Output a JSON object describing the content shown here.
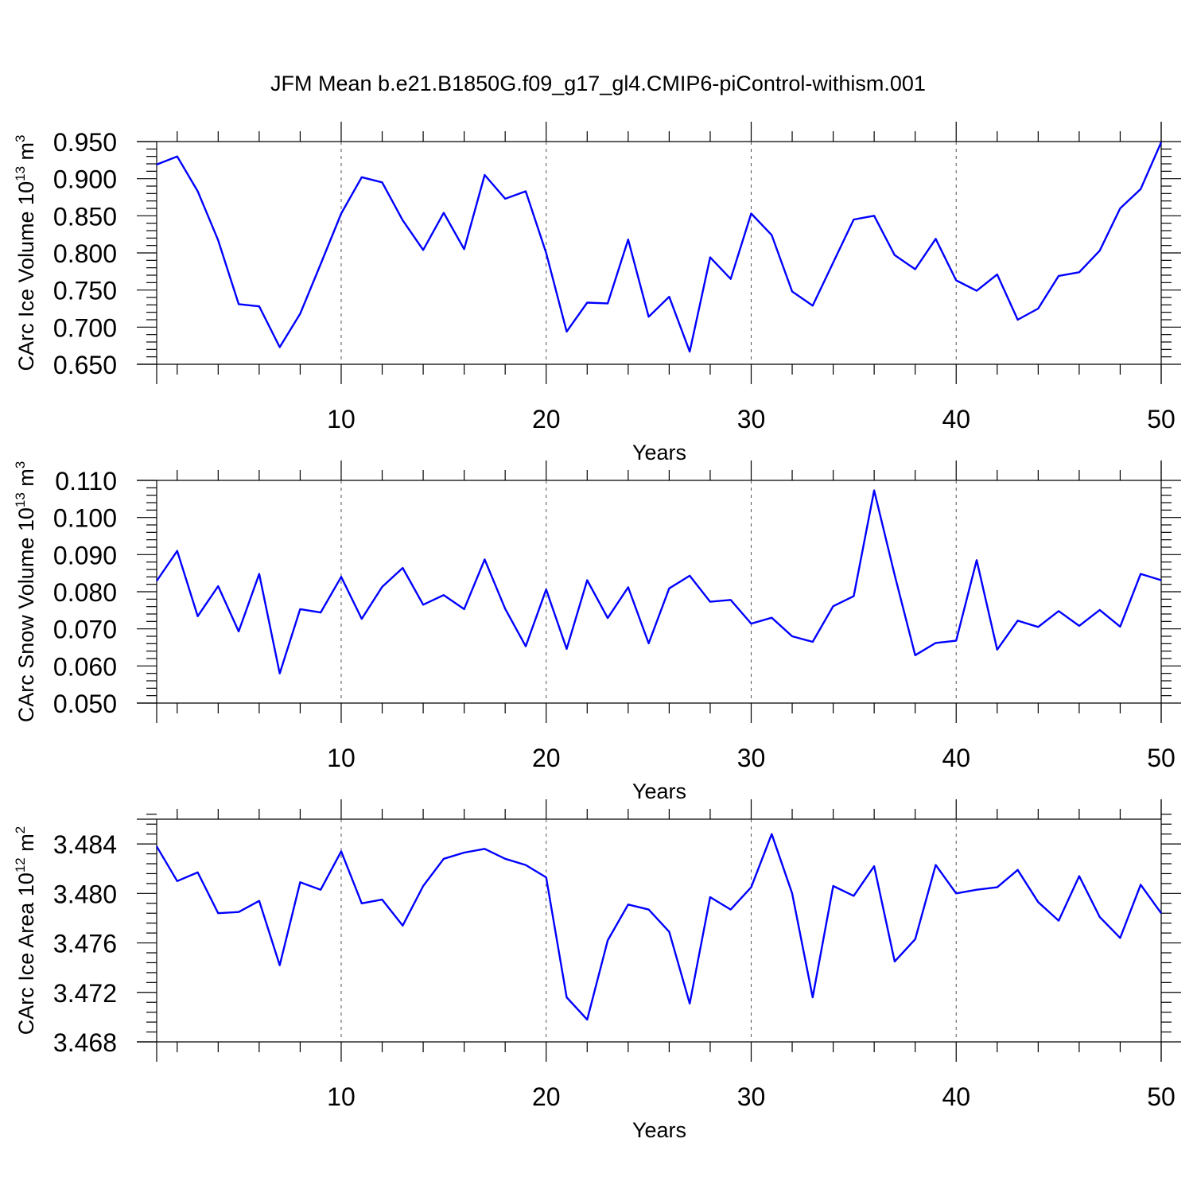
{
  "title": "JFM Mean b.e21.B1850G.f09_g17_gl4.CMIP6-piControl-withism.001",
  "line_color": "#0000ff",
  "chart_data": [
    {
      "type": "line",
      "ylabel_main": "CArc Ice Volume 10",
      "ylabel_exp": "13",
      "ylabel_unit": "m",
      "ylabel_unit_exp": "3",
      "xlabel": "Years",
      "xlim": [
        1,
        50
      ],
      "ylim": [
        0.65,
        0.95
      ],
      "x_ticks": [
        "10",
        "20",
        "30",
        "40",
        "50"
      ],
      "y_ticks": [
        "0.650",
        "0.700",
        "0.750",
        "0.800",
        "0.850",
        "0.900",
        "0.950"
      ],
      "x": [
        1,
        2,
        3,
        4,
        5,
        6,
        7,
        8,
        9,
        10,
        11,
        12,
        13,
        14,
        15,
        16,
        17,
        18,
        19,
        20,
        21,
        22,
        23,
        24,
        25,
        26,
        27,
        28,
        29,
        30,
        31,
        32,
        33,
        34,
        35,
        36,
        37,
        38,
        39,
        40,
        41,
        42,
        43,
        44,
        45,
        46,
        47,
        48,
        49,
        50
      ],
      "values": [
        0.919,
        0.93,
        0.883,
        0.817,
        0.731,
        0.728,
        0.673,
        0.718,
        0.785,
        0.853,
        0.902,
        0.895,
        0.844,
        0.804,
        0.854,
        0.805,
        0.905,
        0.873,
        0.883,
        0.8,
        0.694,
        0.733,
        0.732,
        0.818,
        0.714,
        0.741,
        0.667,
        0.794,
        0.765,
        0.853,
        0.824,
        0.748,
        0.729,
        0.787,
        0.845,
        0.85,
        0.797,
        0.778,
        0.819,
        0.763,
        0.749,
        0.771,
        0.71,
        0.725,
        0.769,
        0.774,
        0.803,
        0.86,
        0.886,
        0.949
      ]
    },
    {
      "type": "line",
      "ylabel_main": "CArc Snow Volume 10",
      "ylabel_exp": "13",
      "ylabel_unit": "m",
      "ylabel_unit_exp": "3",
      "xlabel": "Years",
      "xlim": [
        1,
        50
      ],
      "ylim": [
        0.05,
        0.11
      ],
      "x_ticks": [
        "10",
        "20",
        "30",
        "40",
        "50"
      ],
      "y_ticks": [
        "0.050",
        "0.060",
        "0.070",
        "0.080",
        "0.090",
        "0.100",
        "0.110"
      ],
      "x": [
        1,
        2,
        3,
        4,
        5,
        6,
        7,
        8,
        9,
        10,
        11,
        12,
        13,
        14,
        15,
        16,
        17,
        18,
        19,
        20,
        21,
        22,
        23,
        24,
        25,
        26,
        27,
        28,
        29,
        30,
        31,
        32,
        33,
        34,
        35,
        36,
        37,
        38,
        39,
        40,
        41,
        42,
        43,
        44,
        45,
        46,
        47,
        48,
        49,
        50
      ],
      "values": [
        0.0829,
        0.091,
        0.0734,
        0.0815,
        0.0693,
        0.0848,
        0.058,
        0.0753,
        0.0744,
        0.084,
        0.0727,
        0.0813,
        0.0864,
        0.0765,
        0.0791,
        0.0753,
        0.0887,
        0.0754,
        0.0653,
        0.0806,
        0.0646,
        0.0831,
        0.0729,
        0.0812,
        0.0661,
        0.0809,
        0.0843,
        0.0773,
        0.0778,
        0.0714,
        0.073,
        0.068,
        0.0665,
        0.0761,
        0.0788,
        0.1073,
        0.0845,
        0.0629,
        0.0662,
        0.0668,
        0.0885,
        0.0644,
        0.0722,
        0.0705,
        0.0748,
        0.0708,
        0.0751,
        0.0706,
        0.0848,
        0.0831
      ]
    },
    {
      "type": "line",
      "ylabel_main": "CArc Ice Area 10",
      "ylabel_exp": "12",
      "ylabel_unit": "m",
      "ylabel_unit_exp": "2",
      "xlabel": "Years",
      "xlim": [
        1,
        50
      ],
      "ylim": [
        3.468,
        3.486
      ],
      "x_ticks": [
        "10",
        "20",
        "30",
        "40",
        "50"
      ],
      "y_ticks": [
        "3.468",
        "3.472",
        "3.476",
        "3.480",
        "3.484"
      ],
      "x": [
        1,
        2,
        3,
        4,
        5,
        6,
        7,
        8,
        9,
        10,
        11,
        12,
        13,
        14,
        15,
        16,
        17,
        18,
        19,
        20,
        21,
        22,
        23,
        24,
        25,
        26,
        27,
        28,
        29,
        30,
        31,
        32,
        33,
        34,
        35,
        36,
        37,
        38,
        39,
        40,
        41,
        42,
        43,
        44,
        45,
        46,
        47,
        48,
        49,
        50
      ],
      "values": [
        3.4838,
        3.481,
        3.4817,
        3.4784,
        3.4785,
        3.4794,
        3.4742,
        3.4809,
        3.4803,
        3.4834,
        3.4792,
        3.4795,
        3.4774,
        3.4806,
        3.4828,
        3.4833,
        3.4836,
        3.4828,
        3.4823,
        3.4813,
        3.4716,
        3.4698,
        3.4762,
        3.4791,
        3.4787,
        3.4769,
        3.4711,
        3.4797,
        3.4787,
        3.4805,
        3.4848,
        3.48,
        3.4716,
        3.4806,
        3.4798,
        3.4822,
        3.4745,
        3.4763,
        3.4823,
        3.48,
        3.4803,
        3.4805,
        3.4819,
        3.4793,
        3.4778,
        3.4814,
        3.4781,
        3.4764,
        3.4807,
        3.4784
      ]
    }
  ]
}
